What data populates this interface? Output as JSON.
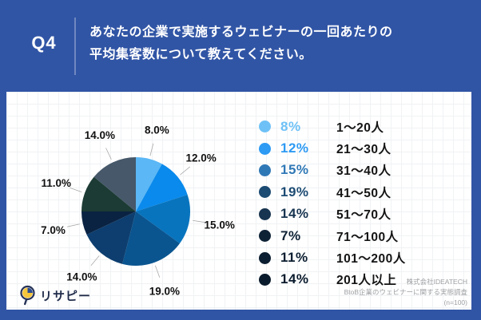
{
  "header": {
    "q_label": "Q4",
    "title_line1": "あなたの企業で実施するウェビナーの一回あたりの",
    "title_line2": "平均集客数について教えてください。"
  },
  "chart_data": {
    "type": "pie",
    "question_no": "Q4",
    "title": "あなたの企業で実施するウェビナーの一回あたりの平均集客数について教えてください。",
    "categories": [
      "1〜20人",
      "21〜30人",
      "31〜40人",
      "41〜50人",
      "51〜70人",
      "71〜100人",
      "101〜200人",
      "201人以上"
    ],
    "values": [
      8,
      12,
      15,
      19,
      14,
      7,
      11,
      14
    ],
    "unit": "%",
    "slice_labels": [
      "8.0%",
      "12.0%",
      "15.0%",
      "19.0%",
      "14.0%",
      "7.0%",
      "11.0%",
      "14.0%"
    ],
    "colors": [
      "#5BB7F5",
      "#0A8AEC",
      "#0874BE",
      "#0A5590",
      "#0D3E6F",
      "#0A2342",
      "#1C3B34",
      "#46586A"
    ],
    "start_angle_deg": 0,
    "clockwise": true,
    "legend_position": "right",
    "sample_size": "n=100"
  },
  "legend": {
    "items": [
      {
        "percent": "8%",
        "label": "1〜20人",
        "color": "#6EC1F6"
      },
      {
        "percent": "12%",
        "label": "21〜30人",
        "color": "#2D9AF3"
      },
      {
        "percent": "15%",
        "label": "31〜40人",
        "color": "#2F78B6"
      },
      {
        "percent": "19%",
        "label": "41〜50人",
        "color": "#1C4B73"
      },
      {
        "percent": "14%",
        "label": "51〜70人",
        "color": "#173450"
      },
      {
        "percent": "7%",
        "label": "71〜100人",
        "color": "#0E2236"
      },
      {
        "percent": "11%",
        "label": "101〜200人",
        "color": "#0C1E31"
      },
      {
        "percent": "14%",
        "label": "201人以上",
        "color": "#0A1B2D"
      }
    ]
  },
  "footer": {
    "logo_text": "リサピー",
    "credit_company": "株式会社IDEATECH",
    "credit_survey": "BtoB企業のウェビナーに関する実態調査",
    "credit_sample": "(n=100)"
  },
  "colors": {
    "header_bg": "#3155A5",
    "label_text": "#111111",
    "leader_line": "#AAAAAA",
    "logo_yellow": "#F5C63C",
    "logo_navy": "#253258"
  }
}
